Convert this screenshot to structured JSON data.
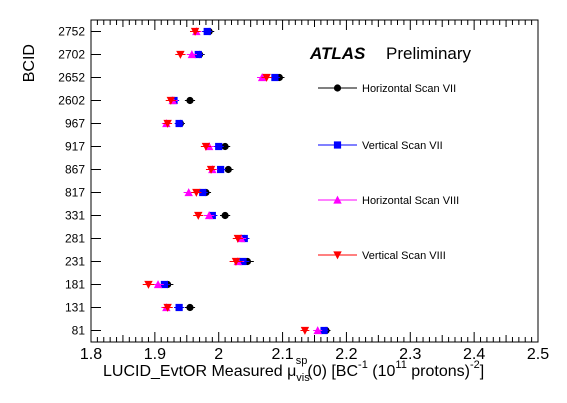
{
  "chart_data": {
    "type": "scatter",
    "annotation": {
      "experiment": "ATLAS",
      "status": "Preliminary"
    },
    "xlabel": {
      "prefix": "LUCID_EvtOR Measured μ",
      "sup": "sp",
      "sub": "vis",
      "suffix": "(0) [BC",
      "exp1": "-1",
      "mid": " (10",
      "exp2": "11",
      "mid2": " protons)",
      "exp3": "-2",
      "end": "]"
    },
    "ylabel": "BCID",
    "xlim": [
      1.8,
      2.5
    ],
    "xticks": [
      "1.8",
      "1.9",
      "2",
      "2.1",
      "2.2",
      "2.3",
      "2.4",
      "2.5"
    ],
    "categories": [
      "2752",
      "2702",
      "2652",
      "2602",
      "967",
      "917",
      "867",
      "817",
      "331",
      "281",
      "231",
      "181",
      "131",
      "81"
    ],
    "series": [
      {
        "name": "Horizontal Scan VII",
        "color": "#000000",
        "marker": "circle",
        "values": [
          1.985,
          1.97,
          2.095,
          1.955,
          1.94,
          2.01,
          2.015,
          1.98,
          2.01,
          2.04,
          2.045,
          1.92,
          1.955,
          2.168
        ]
      },
      {
        "name": "Vertical Scan VII",
        "color": "#0000ff",
        "marker": "square",
        "values": [
          1.982,
          1.968,
          2.088,
          1.93,
          1.938,
          2.0,
          2.003,
          1.975,
          1.99,
          2.04,
          2.038,
          1.915,
          1.938,
          2.165
        ]
      },
      {
        "name": "Horizontal Scan VIII",
        "color": "#ff00ff",
        "marker": "triangle-up",
        "values": [
          1.965,
          1.958,
          2.068,
          1.928,
          1.918,
          1.985,
          1.99,
          1.953,
          1.985,
          2.035,
          2.03,
          1.905,
          1.918,
          2.155
        ]
      },
      {
        "name": "Vertical Scan VIII",
        "color": "#ff0000",
        "marker": "triangle-down",
        "values": [
          1.963,
          1.94,
          2.075,
          1.925,
          1.92,
          1.98,
          1.988,
          1.965,
          1.968,
          2.03,
          2.027,
          1.89,
          1.92,
          2.135
        ]
      }
    ],
    "error": [
      0.008,
      0.008,
      0.008,
      0.008,
      0.007,
      0.008,
      0.008,
      0.008,
      0.008,
      0.008,
      0.01,
      0.009,
      0.008,
      0.007
    ],
    "legend_position": "right"
  }
}
